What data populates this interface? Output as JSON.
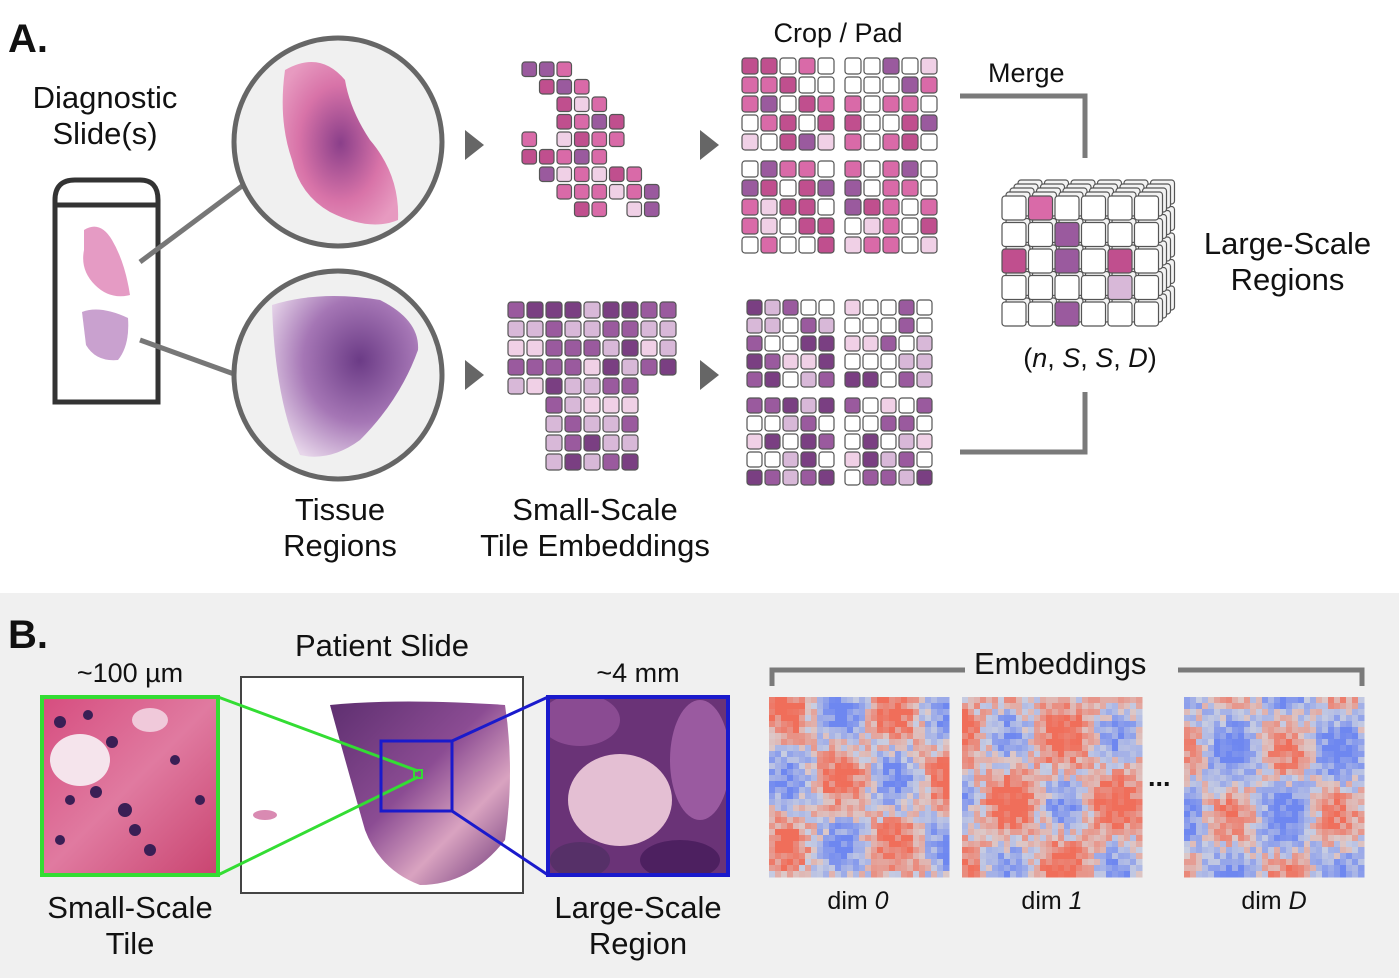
{
  "panel_a": {
    "letter": "A.",
    "slide_label": "Diagnostic\nSlide(s)",
    "tissue_label": "Tissue\nRegions",
    "tile_label": "Small-Scale\nTile Embeddings",
    "crop_label": "Crop / Pad",
    "merge_label": "Merge",
    "regions_label": "Large-Scale\nRegions",
    "tensor_shape": {
      "open": "(",
      "n": "n",
      "sep1": ", ",
      "s1": "S",
      "sep2": ", ",
      "s2": "S",
      "sep3": ", ",
      "d": "D",
      "close": ")"
    }
  },
  "panel_b": {
    "letter": "B.",
    "tile_scale": "~100 µm",
    "tile_label": "Small-Scale\nTile",
    "slide_label": "Patient Slide",
    "region_scale": "~4 mm",
    "region_label": "Large-Scale\nRegion",
    "embeddings_label": "Embeddings",
    "ellipsis": "...",
    "dims": [
      {
        "prefix": "dim ",
        "index": "0"
      },
      {
        "prefix": "dim ",
        "index": "1"
      },
      {
        "prefix": "dim ",
        "index": "D"
      }
    ]
  },
  "colors": {
    "pink_light": "#f0d0e6",
    "pink": "#d96aa8",
    "pink_dark": "#c04f8e",
    "purple": "#9a5a9e",
    "purple_dark": "#7a3f82",
    "lavender": "#d8b8d8",
    "zoom_green": "#33dd33",
    "zoom_blue": "#1a1acc",
    "embed_red": "#e8765a",
    "embed_blue": "#6f86d9",
    "connector_gray": "#7a7a7a"
  }
}
